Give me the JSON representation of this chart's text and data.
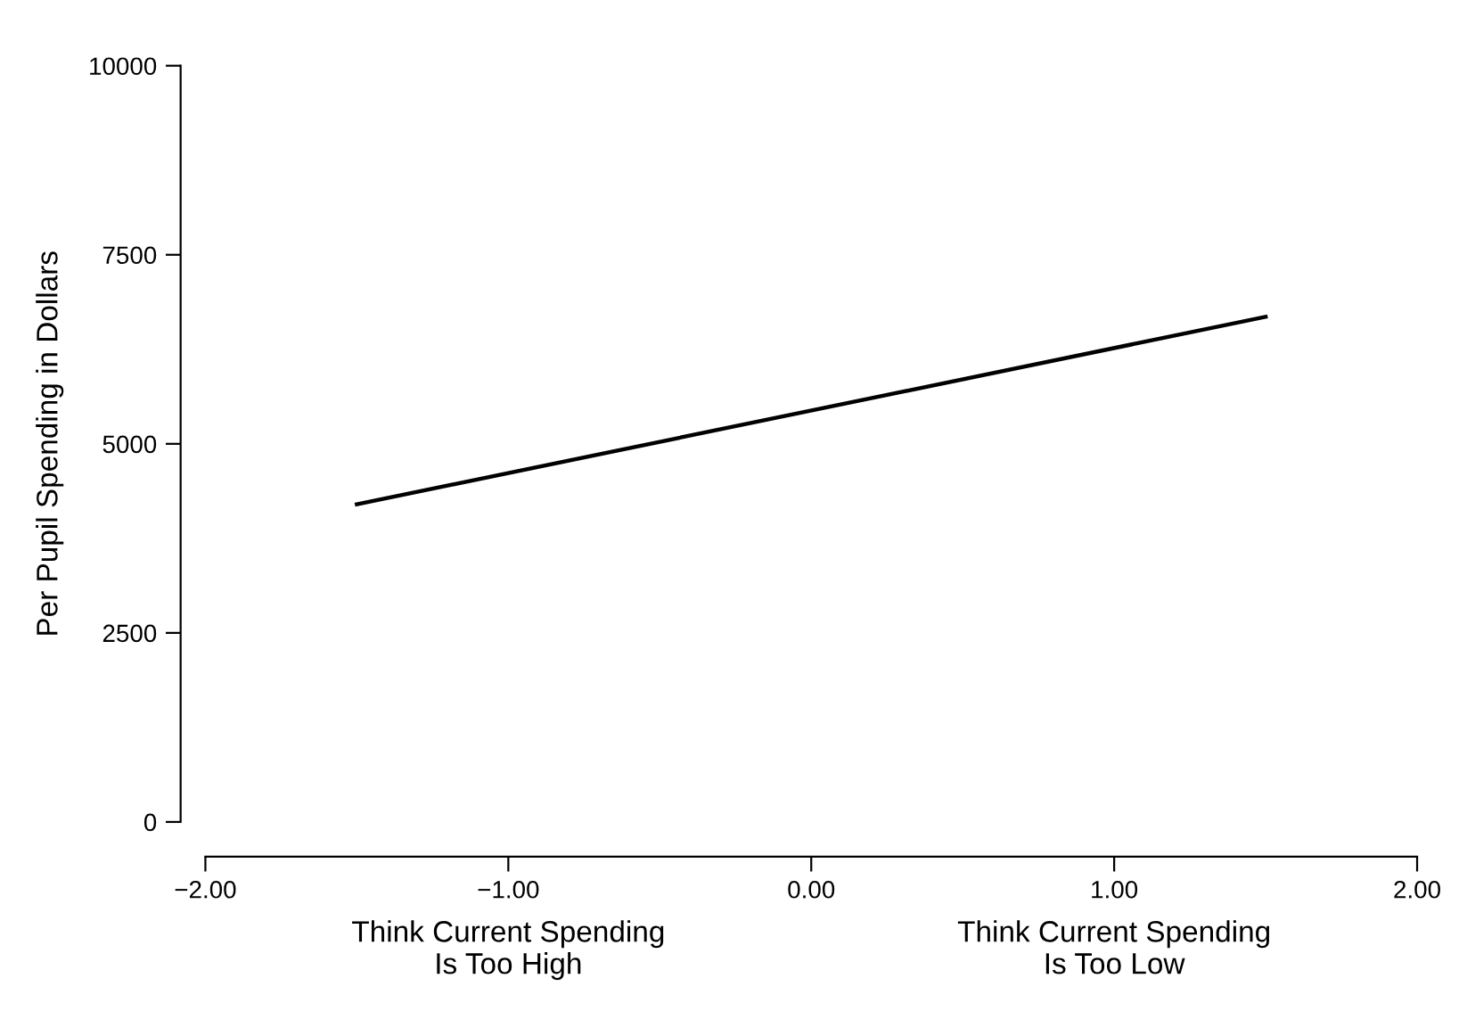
{
  "chart_data": {
    "type": "line",
    "ylabel": "Per Pupil Spending in Dollars",
    "x": [
      -1.5,
      1.5
    ],
    "series": [
      {
        "color": "#000000",
        "values": [
          4200,
          6680
        ]
      }
    ],
    "xlim": [
      -2,
      2
    ],
    "xticks": [
      {
        "value": -2,
        "label": "−2.00"
      },
      {
        "value": -1,
        "label": "−1.00"
      },
      {
        "value": 0,
        "label": "0.00"
      },
      {
        "value": 1,
        "label": "1.00"
      },
      {
        "value": 2,
        "label": "2.00"
      }
    ],
    "ylim": [
      0,
      10000
    ],
    "yticks": [
      0,
      2500,
      5000,
      7500,
      10000
    ],
    "grid": false,
    "legend": false,
    "annotations": [
      "Think Current Spending\nIs Too High",
      "Think Current Spending\nIs Too Low"
    ]
  }
}
